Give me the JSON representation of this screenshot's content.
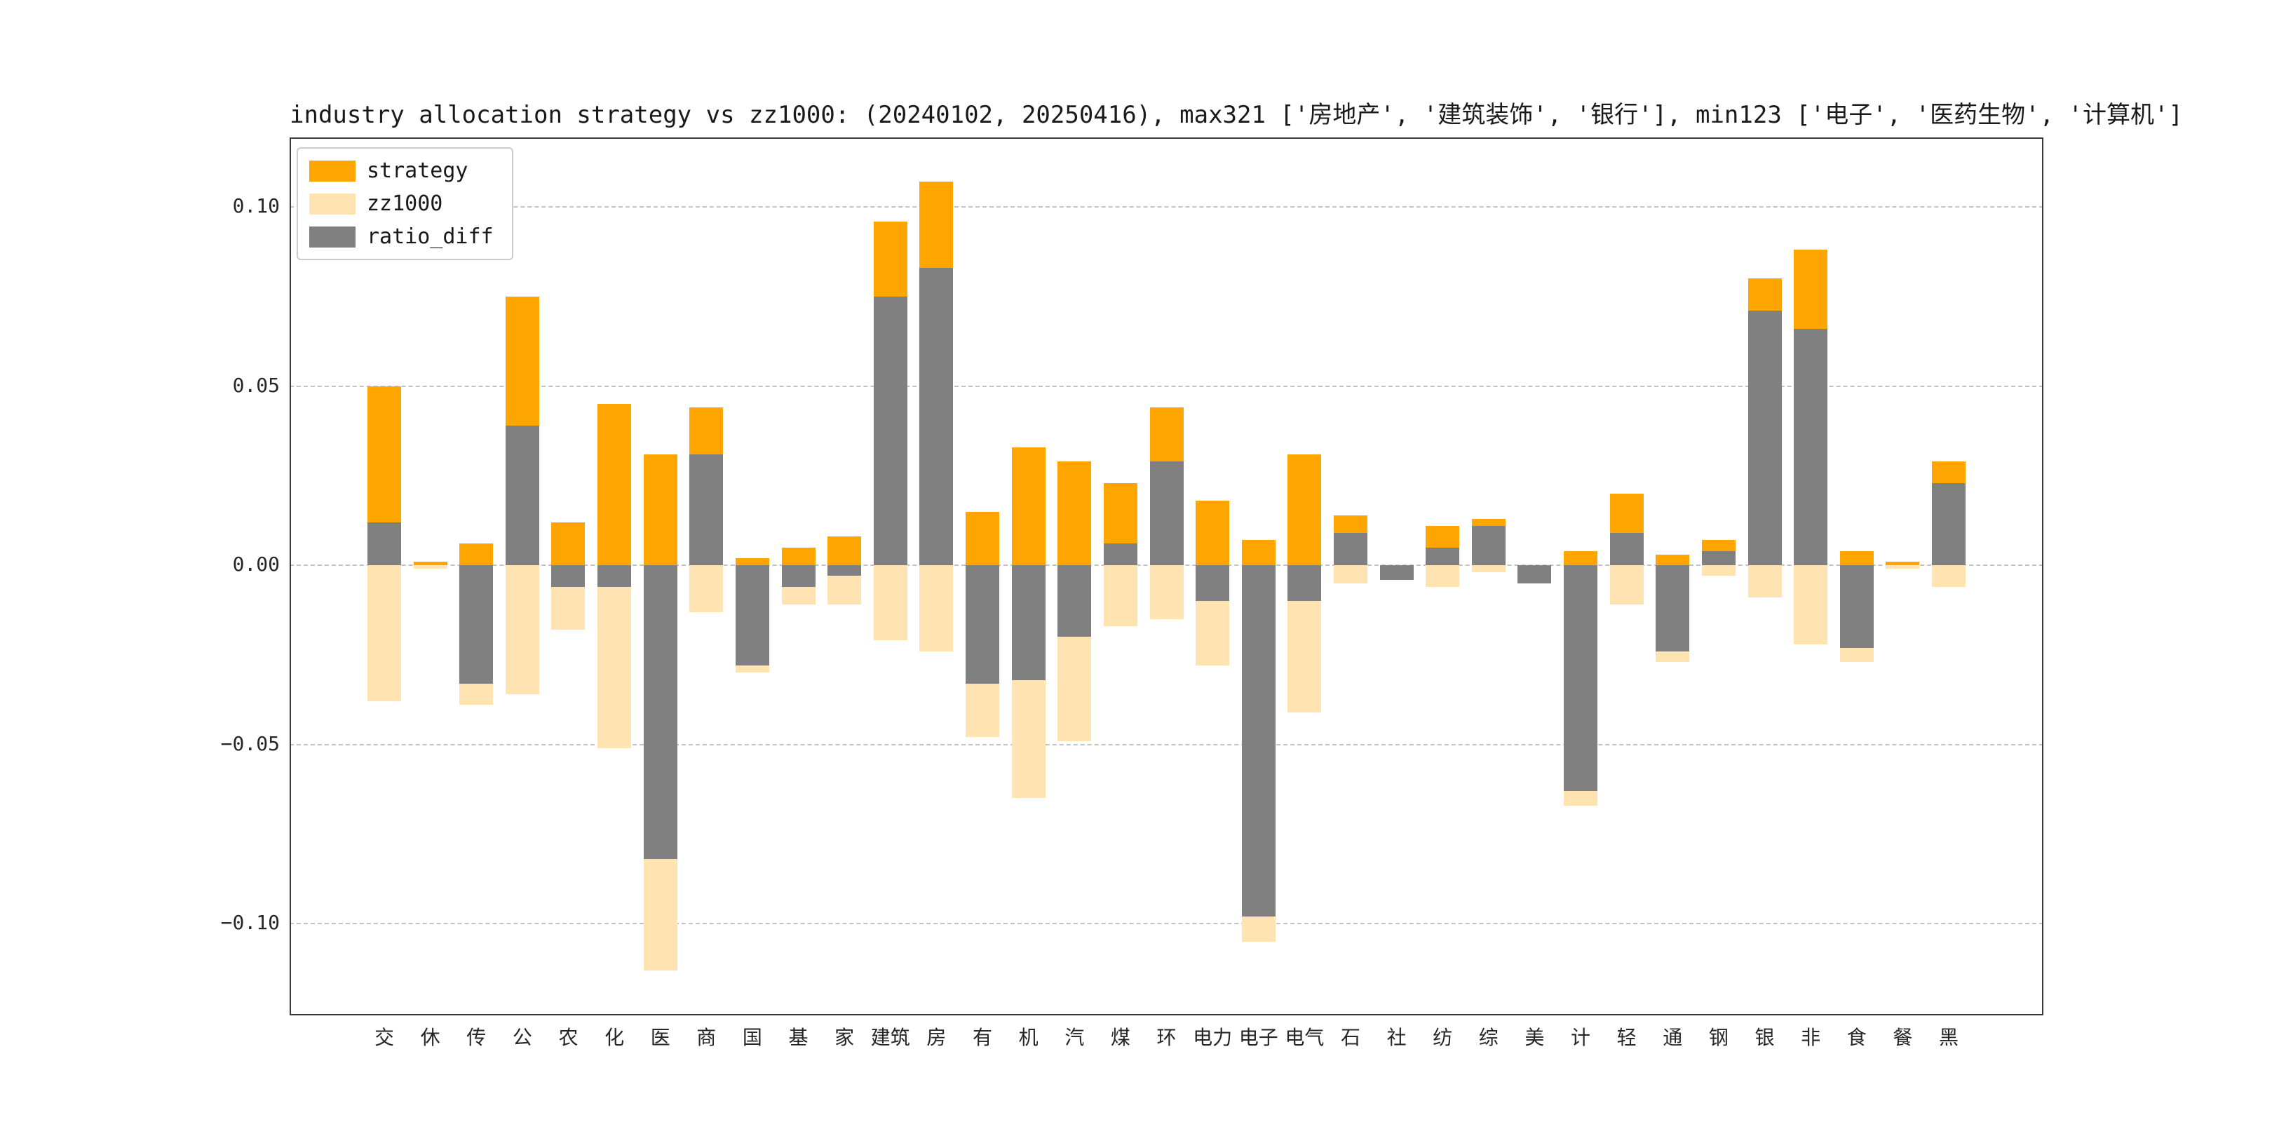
{
  "title": "industry allocation strategy vs zz1000: (20240102, 20250416), max321 ['房地产', '建筑装饰', '银行'], min123 ['电子', '医药生物', '计算机']",
  "legend": {
    "items": [
      {
        "label": "strategy",
        "color": "#FFA500"
      },
      {
        "label": "zz1000",
        "color": "#FFE4B2"
      },
      {
        "label": "ratio_diff",
        "color": "#808080"
      }
    ]
  },
  "chart_data": {
    "type": "bar",
    "title": "industry allocation strategy vs zz1000: (20240102, 20250416), max321 ['房地产', '建筑装饰', '银行'], min123 ['电子', '医药生物', '计算机']",
    "categories": [
      "交",
      "休",
      "传",
      "公",
      "农",
      "化",
      "医",
      "商",
      "国",
      "基",
      "家",
      "建筑",
      "房",
      "有",
      "机",
      "汽",
      "煤",
      "环",
      "电力",
      "电子",
      "电气",
      "石",
      "社",
      "纺",
      "综",
      "美",
      "计",
      "轻",
      "通",
      "钢",
      "银",
      "非",
      "食",
      "餐",
      "黑"
    ],
    "series": [
      {
        "name": "strategy",
        "color": "#FFA500",
        "direction": "up",
        "values": [
          0.05,
          0.001,
          0.006,
          0.075,
          0.012,
          0.045,
          0.031,
          0.044,
          0.002,
          0.005,
          0.008,
          0.096,
          0.107,
          0.015,
          0.033,
          0.029,
          0.023,
          0.044,
          0.018,
          0.007,
          0.031,
          0.014,
          0.0,
          0.011,
          0.013,
          0.0,
          0.004,
          0.02,
          0.003,
          0.007,
          0.08,
          0.088,
          0.004,
          0.001,
          0.029
        ]
      },
      {
        "name": "zz1000",
        "color": "#FFE4B2",
        "direction": "down",
        "values": [
          0.038,
          0.001,
          0.039,
          0.036,
          0.018,
          0.051,
          0.113,
          0.013,
          0.03,
          0.011,
          0.011,
          0.021,
          0.024,
          0.048,
          0.065,
          0.049,
          0.017,
          0.015,
          0.028,
          0.105,
          0.041,
          0.005,
          0.004,
          0.006,
          0.002,
          0.005,
          0.067,
          0.011,
          0.027,
          0.003,
          0.009,
          0.022,
          0.027,
          0.001,
          0.006
        ]
      },
      {
        "name": "ratio_diff",
        "color": "#808080",
        "direction": "signed",
        "values": [
          0.012,
          0.0,
          -0.033,
          0.039,
          -0.006,
          -0.006,
          -0.082,
          0.031,
          -0.028,
          -0.006,
          -0.003,
          0.075,
          0.083,
          -0.033,
          -0.032,
          -0.02,
          0.006,
          0.029,
          -0.01,
          -0.098,
          -0.01,
          0.009,
          -0.004,
          0.005,
          0.011,
          -0.005,
          -0.063,
          0.009,
          -0.024,
          0.004,
          0.071,
          0.066,
          -0.023,
          0.0,
          0.023
        ]
      }
    ],
    "yticks": {
      "values": [
        0.1,
        0.05,
        0.0,
        -0.05,
        -0.1
      ],
      "labels": [
        "0.10",
        "0.05",
        "0.00",
        "−0.05",
        "−0.10"
      ]
    },
    "ylim": [
      -0.1256,
      0.1194
    ],
    "xlabel": "",
    "ylabel": "",
    "grid": "dashed horizontal",
    "legend_position": "upper left",
    "note": "zz1000 is plotted downward as negative bars; ratio_diff = strategy - zz1000, drawn on top of the other bars"
  }
}
